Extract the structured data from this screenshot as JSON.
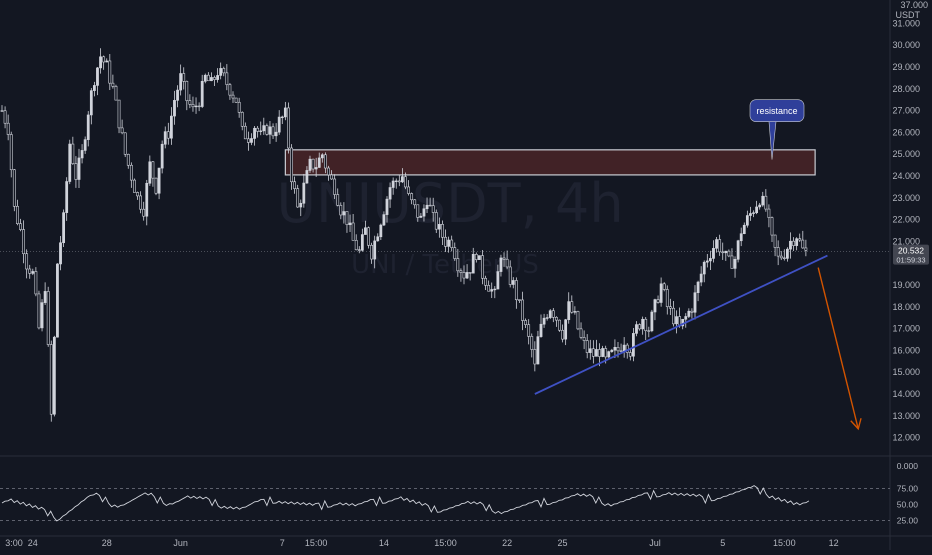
{
  "chart_data": {
    "type": "candlestick",
    "symbol": "UNIUSDT, 4h",
    "subtitle": "UNI / TetherUS",
    "currency": "USDT",
    "y_unit_top": "37.000",
    "yticks": [
      "31.000",
      "30.000",
      "29.000",
      "28.000",
      "27.000",
      "26.000",
      "25.000",
      "24.000",
      "23.000",
      "22.000",
      "21.000",
      "19.000",
      "18.000",
      "17.000",
      "16.000",
      "15.000",
      "14.000",
      "13.000",
      "12.000"
    ],
    "ytick_values": [
      31,
      30,
      29,
      28,
      27,
      26,
      25,
      24,
      23,
      22,
      21,
      19,
      18,
      17,
      16,
      15,
      14,
      13,
      12
    ],
    "xticks": [
      {
        "label": "3:00",
        "t": 0
      },
      {
        "label": "24",
        "t": 10
      },
      {
        "label": "28",
        "t": 34
      },
      {
        "label": "Jun",
        "t": 58
      },
      {
        "label": "7",
        "t": 91
      },
      {
        "label": "15:00",
        "t": 102
      },
      {
        "label": "14",
        "t": 124
      },
      {
        "label": "15:00",
        "t": 144
      },
      {
        "label": "22",
        "t": 164
      },
      {
        "label": "25",
        "t": 182
      },
      {
        "label": "Jul",
        "t": 212
      },
      {
        "label": "5",
        "t": 234
      },
      {
        "label": "15:00",
        "t": 254
      },
      {
        "label": "12",
        "t": 270
      }
    ],
    "price_anchors": [
      [
        0,
        27.0
      ],
      [
        2,
        26.2
      ],
      [
        4,
        22.5
      ],
      [
        6,
        21.5
      ],
      [
        8,
        20.0
      ],
      [
        10,
        19.5
      ],
      [
        12,
        17.0
      ],
      [
        14,
        19.0
      ],
      [
        16,
        13.0
      ],
      [
        18,
        20.0
      ],
      [
        20,
        22.0
      ],
      [
        22,
        25.5
      ],
      [
        24,
        24.0
      ],
      [
        26,
        25.0
      ],
      [
        28,
        27.0
      ],
      [
        30,
        28.5
      ],
      [
        32,
        29.5
      ],
      [
        34,
        29.0
      ],
      [
        36,
        28.0
      ],
      [
        38,
        26.5
      ],
      [
        40,
        25.0
      ],
      [
        42,
        24.0
      ],
      [
        44,
        23.0
      ],
      [
        46,
        22.5
      ],
      [
        48,
        24.5
      ],
      [
        50,
        23.5
      ],
      [
        52,
        25.5
      ],
      [
        54,
        26.0
      ],
      [
        56,
        27.5
      ],
      [
        58,
        28.5
      ],
      [
        60,
        27.5
      ],
      [
        62,
        27.0
      ],
      [
        64,
        27.5
      ],
      [
        66,
        28.5
      ],
      [
        68,
        28.2
      ],
      [
        70,
        28.8
      ],
      [
        72,
        28.5
      ],
      [
        74,
        28.0
      ],
      [
        76,
        27.5
      ],
      [
        78,
        26.0
      ],
      [
        80,
        25.8
      ],
      [
        82,
        26.3
      ],
      [
        84,
        25.8
      ],
      [
        86,
        26.2
      ],
      [
        88,
        26.0
      ],
      [
        90,
        26.5
      ],
      [
        92,
        26.8
      ],
      [
        94,
        24.0
      ],
      [
        96,
        22.5
      ],
      [
        98,
        23.5
      ],
      [
        100,
        24.5
      ],
      [
        102,
        24.5
      ],
      [
        104,
        25.0
      ],
      [
        106,
        24.0
      ],
      [
        108,
        23.5
      ],
      [
        110,
        22.5
      ],
      [
        112,
        22.0
      ],
      [
        114,
        21.0
      ],
      [
        116,
        20.5
      ],
      [
        118,
        21.5
      ],
      [
        120,
        20.5
      ],
      [
        122,
        21.5
      ],
      [
        124,
        22.5
      ],
      [
        126,
        23.5
      ],
      [
        128,
        23.8
      ],
      [
        130,
        24.0
      ],
      [
        132,
        23.0
      ],
      [
        134,
        22.5
      ],
      [
        136,
        22.0
      ],
      [
        138,
        23.0
      ],
      [
        140,
        22.0
      ],
      [
        142,
        21.5
      ],
      [
        144,
        21.0
      ],
      [
        146,
        21.0
      ],
      [
        148,
        20.0
      ],
      [
        150,
        19.5
      ],
      [
        152,
        19.8
      ],
      [
        154,
        20.5
      ],
      [
        156,
        19.5
      ],
      [
        158,
        19.0
      ],
      [
        160,
        18.5
      ],
      [
        162,
        20.5
      ],
      [
        164,
        19.5
      ],
      [
        166,
        19.0
      ],
      [
        168,
        18.0
      ],
      [
        170,
        17.0
      ],
      [
        172,
        16.0
      ],
      [
        173,
        15.2
      ],
      [
        174,
        16.5
      ],
      [
        176,
        17.5
      ],
      [
        178,
        18.0
      ],
      [
        180,
        17.5
      ],
      [
        182,
        16.8
      ],
      [
        184,
        18.0
      ],
      [
        186,
        17.5
      ],
      [
        188,
        16.5
      ],
      [
        190,
        16.0
      ],
      [
        192,
        15.8
      ],
      [
        194,
        16.0
      ],
      [
        196,
        15.5
      ],
      [
        198,
        15.8
      ],
      [
        200,
        16.0
      ],
      [
        202,
        16.5
      ],
      [
        204,
        16.0
      ],
      [
        206,
        17.0
      ],
      [
        208,
        17.5
      ],
      [
        210,
        17.0
      ],
      [
        212,
        18.0
      ],
      [
        214,
        19.0
      ],
      [
        216,
        18.0
      ],
      [
        218,
        17.5
      ],
      [
        220,
        17.0
      ],
      [
        222,
        17.5
      ],
      [
        224,
        18.0
      ],
      [
        226,
        19.0
      ],
      [
        228,
        20.0
      ],
      [
        230,
        20.5
      ],
      [
        232,
        21.0
      ],
      [
        234,
        20.5
      ],
      [
        236,
        20.0
      ],
      [
        238,
        20.2
      ],
      [
        240,
        21.5
      ],
      [
        242,
        22.0
      ],
      [
        244,
        22.5
      ],
      [
        246,
        23.0
      ],
      [
        248,
        22.5
      ],
      [
        250,
        21.0
      ],
      [
        252,
        20.2
      ],
      [
        254,
        20.5
      ],
      [
        256,
        21.0
      ],
      [
        258,
        21.3
      ],
      [
        260,
        20.6
      ],
      [
        261,
        20.5
      ]
    ],
    "last_price": "20.532",
    "countdown": "01:59:33",
    "resistance_zone": {
      "top": 25.2,
      "bottom": 24.05,
      "t_start": 92,
      "t_end": 264
    },
    "support_trendline": {
      "t1": 173,
      "p1": 14.0,
      "t2": 268,
      "p2": 20.35
    },
    "projection_arrow": {
      "t1": 265,
      "p1": 19.8,
      "t2": 278,
      "p2": 12.4,
      "color": "#d35400"
    },
    "annotation": {
      "text": "resistance",
      "t": 250,
      "p": 24.75
    },
    "indicator": {
      "type": "oscillator",
      "levels": [
        "75.00",
        "50.00",
        "25.00"
      ],
      "level_values": [
        75,
        50,
        25
      ],
      "top_label": "0.000",
      "values": [
        58,
        60,
        56,
        52,
        48,
        44,
        40,
        38,
        34,
        30,
        36,
        42,
        48,
        54,
        60,
        62,
        60,
        56,
        52,
        50,
        52,
        56,
        60,
        64,
        62,
        58,
        56,
        54,
        55,
        58,
        62,
        60,
        58,
        56,
        54,
        52,
        50,
        48,
        46,
        44,
        46,
        50,
        52,
        54,
        56,
        58,
        56,
        54,
        52,
        50,
        48,
        46,
        48,
        50,
        52,
        54,
        52,
        50,
        48,
        50,
        52,
        54,
        56,
        58,
        60,
        62,
        58,
        54,
        50,
        46,
        44,
        42,
        44,
        46,
        48,
        50,
        52,
        50,
        48,
        46,
        44,
        42,
        40,
        42,
        44,
        46,
        48,
        50,
        52,
        54,
        56,
        58,
        60,
        62,
        64,
        62,
        60,
        58,
        56,
        54,
        52,
        54,
        56,
        58,
        60,
        62,
        64,
        66,
        68,
        70,
        68,
        66,
        64,
        62,
        60,
        58,
        60,
        62,
        64,
        66,
        68,
        70,
        72,
        74,
        72,
        70,
        66,
        62,
        58,
        54,
        50,
        48,
        50
      ]
    }
  }
}
